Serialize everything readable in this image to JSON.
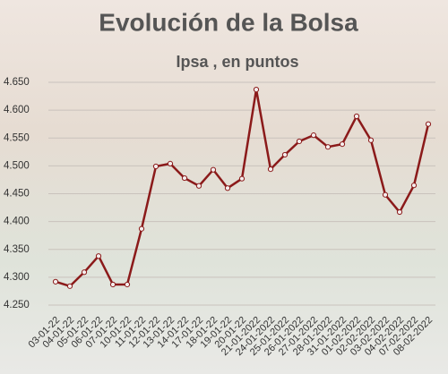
{
  "chart_data": {
    "type": "line",
    "title": "Evolución de la Bolsa",
    "subtitle": "Ipsa , en puntos",
    "categories": [
      "03-01-22",
      "04-01-22",
      "05-01-22",
      "06-01-22",
      "07-01-22",
      "10-01-22",
      "11-01-22",
      "12-01-22",
      "13-01-22",
      "14-01-22",
      "17-01-22",
      "18-01-22",
      "19-01-22",
      "20-01-22",
      "21-01-2022",
      "24-01-2022",
      "25-01-2022",
      "26-01-2022",
      "27-01-2022",
      "28-01-2022",
      "31-01-2022",
      "01-02-2022",
      "02-02-2022",
      "03-02-2022",
      "04-02-2022",
      "07-02-2022",
      "08-02-2022"
    ],
    "series": [
      {
        "name": "Ipsa",
        "color": "#8b1a1a",
        "values": [
          4292,
          4284,
          4309,
          4338,
          4287,
          4287,
          4387,
          4499,
          4504,
          4478,
          4464,
          4493,
          4460,
          4477,
          4637,
          4494,
          4520,
          4544,
          4555,
          4534,
          4539,
          4589,
          4546,
          4448,
          4417,
          4465,
          4575
        ]
      }
    ],
    "ylim": [
      4250,
      4650
    ],
    "yticks": [
      {
        "value": 4250,
        "label": "4.250"
      },
      {
        "value": 4300,
        "label": "4.300"
      },
      {
        "value": 4350,
        "label": "4.350"
      },
      {
        "value": 4400,
        "label": "4.400"
      },
      {
        "value": 4450,
        "label": "4.450"
      },
      {
        "value": 4500,
        "label": "4.500"
      },
      {
        "value": 4550,
        "label": "4.550"
      },
      {
        "value": 4600,
        "label": "4.600"
      },
      {
        "value": 4650,
        "label": "4.650"
      }
    ],
    "grid": true
  }
}
